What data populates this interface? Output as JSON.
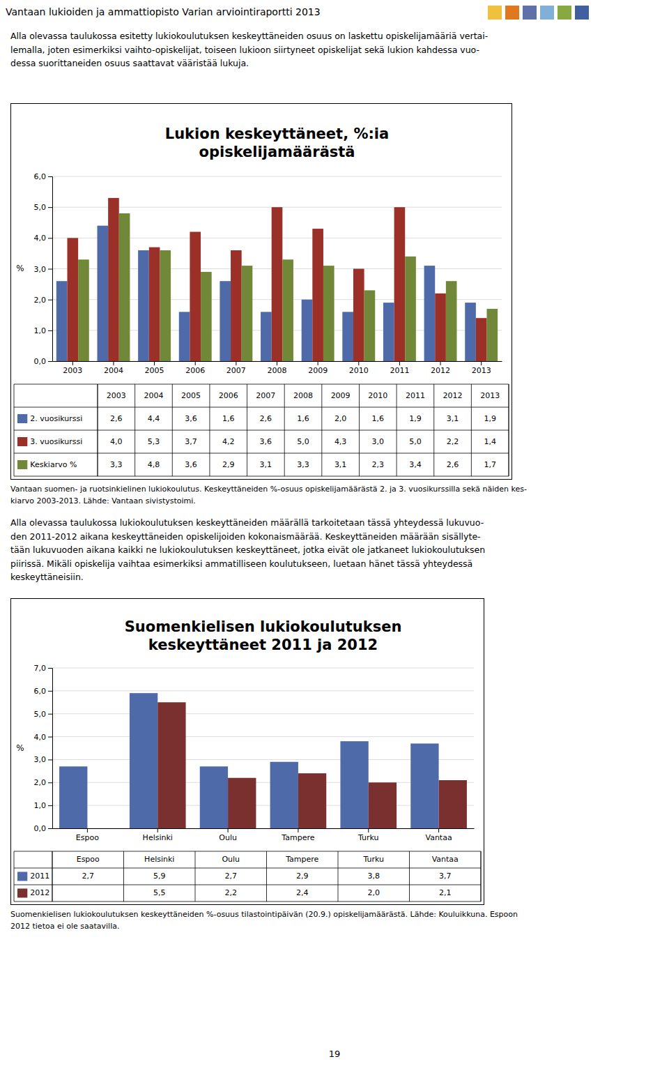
{
  "page_title": "Vantaan lukioiden ja ammattiopisto Varian arviointiraportti 2013",
  "header_colors": [
    "#f0c03f",
    "#e07820",
    "#6070a8",
    "#80b0d8",
    "#88a840",
    "#4060a0"
  ],
  "intro_text": "Alla olevassa taulukossa esitetty lukiokoulutuksen keskeyttäneiden osuus on laskettu opiskelijamääriä vertai-\nlemalla, joten esimerkiksi vaihto-opiskelijat, toiseen lukioon siirtyneet opiskelijat sekä lukion kahdessa vuo-\ndessa suorittaneiden osuus saattavat vääristää lukuja.",
  "middle_text": "Alla olevassa taulukossa lukiokoulutuksen keskeyttäneiden määrällä tarkoitetaan tässä yhteydessä lukuvuo-\nden 2011-2012 aikana keskeyttäneiden opiskelijoiden kokonaismäärää. Keskeyttäneiden määrään sisällyte-\ntään lukuvuoden aikana kaikki ne lukiokoulutuksen keskeyttäneet, jotka eivät ole jatkaneet lukiokoulutuksen\npiirissä. Mikäli opiskelija vaihtaa esimerkiksi ammatilliseen koulutukseen, luetaan hänet tässä yhteydessä\nkeskeyttäneisiin.",
  "page_number": "19",
  "chart_data": [
    {
      "type": "bar",
      "title": "Lukion keskeyttäneet, %:ia\nopiskelijamäärästä",
      "ylabel": "%",
      "caption": "Vantaan suomen- ja ruotsinkielinen lukiokoulutus. Keskeyttäneiden %-osuus opiskelijamäärästä 2. ja 3. vuosikurssilla sekä näiden kes-\nkiarvo 2003-2013. Lähde: Vantaan sivistystoimi.",
      "categories": [
        "2003",
        "2004",
        "2005",
        "2006",
        "2007",
        "2008",
        "2009",
        "2010",
        "2011",
        "2012",
        "2013"
      ],
      "series": [
        {
          "name": "2. vuosikurssi",
          "color": "#4f6aa8",
          "values": [
            2.6,
            4.4,
            3.6,
            1.6,
            2.6,
            1.6,
            2.0,
            1.6,
            1.9,
            3.1,
            1.9
          ],
          "value_labels": [
            "2,6",
            "4,4",
            "3,6",
            "1,6",
            "2,6",
            "1,6",
            "2,0",
            "1,6",
            "1,9",
            "3,1",
            "1,9"
          ]
        },
        {
          "name": "3. vuosikurssi",
          "color": "#9b3028",
          "values": [
            4.0,
            5.3,
            3.7,
            4.2,
            3.6,
            5.0,
            4.3,
            3.0,
            5.0,
            2.2,
            1.4
          ],
          "value_labels": [
            "4,0",
            "5,3",
            "3,7",
            "4,2",
            "3,6",
            "5,0",
            "4,3",
            "3,0",
            "5,0",
            "2,2",
            "1,4"
          ]
        },
        {
          "name": "Keskiarvo %",
          "color": "#708838",
          "values": [
            3.3,
            4.8,
            3.6,
            2.9,
            3.1,
            3.3,
            3.1,
            2.3,
            3.4,
            2.6,
            1.7
          ],
          "value_labels": [
            "3,3",
            "4,8",
            "3,6",
            "2,9",
            "3,1",
            "3,3",
            "3,1",
            "2,3",
            "3,4",
            "2,6",
            "1,7"
          ]
        }
      ],
      "ylim": [
        0,
        6
      ],
      "yticks": [
        {
          "value": 0,
          "label": "0,0"
        },
        {
          "value": 1,
          "label": "1,0"
        },
        {
          "value": 2,
          "label": "2,0"
        },
        {
          "value": 3,
          "label": "3,0"
        },
        {
          "value": 4,
          "label": "4,0"
        },
        {
          "value": 5,
          "label": "5,0"
        },
        {
          "value": 6,
          "label": "6,0"
        }
      ],
      "grid": true,
      "legend": "bottom"
    },
    {
      "type": "bar",
      "title": "Suomenkielisen lukiokoulutuksen\nkeskeyttäneet 2011 ja 2012",
      "ylabel": "%",
      "caption": "Suomenkielisen lukiokoulutuksen keskeyttäneiden %-osuus tilastointipäivän (20.9.) opiskelijamäärästä. Lähde: Kouluikkuna. Espoon\n2012 tietoa ei ole saatavilla.",
      "categories": [
        "Espoo",
        "Helsinki",
        "Oulu",
        "Tampere",
        "Turku",
        "Vantaa"
      ],
      "series": [
        {
          "name": "2011",
          "color": "#4f6aa8",
          "values": [
            2.7,
            5.9,
            2.7,
            2.9,
            3.8,
            3.7
          ],
          "value_labels": [
            "2,7",
            "5,9",
            "2,7",
            "2,9",
            "3,8",
            "3,7"
          ]
        },
        {
          "name": "2012",
          "color": "#7b3030",
          "values": [
            null,
            5.5,
            2.2,
            2.4,
            2.0,
            2.1
          ],
          "value_labels": [
            null,
            "5,5",
            "2,2",
            "2,4",
            "2,0",
            "2,1"
          ]
        }
      ],
      "ylim": [
        0,
        7
      ],
      "yticks": [
        {
          "value": 0,
          "label": "0,0"
        },
        {
          "value": 1,
          "label": "1,0"
        },
        {
          "value": 2,
          "label": "2,0"
        },
        {
          "value": 3,
          "label": "3,0"
        },
        {
          "value": 4,
          "label": "4,0"
        },
        {
          "value": 5,
          "label": "5,0"
        },
        {
          "value": 6,
          "label": "6,0"
        },
        {
          "value": 7,
          "label": "7,0"
        }
      ],
      "grid": true,
      "legend": "bottom"
    }
  ]
}
